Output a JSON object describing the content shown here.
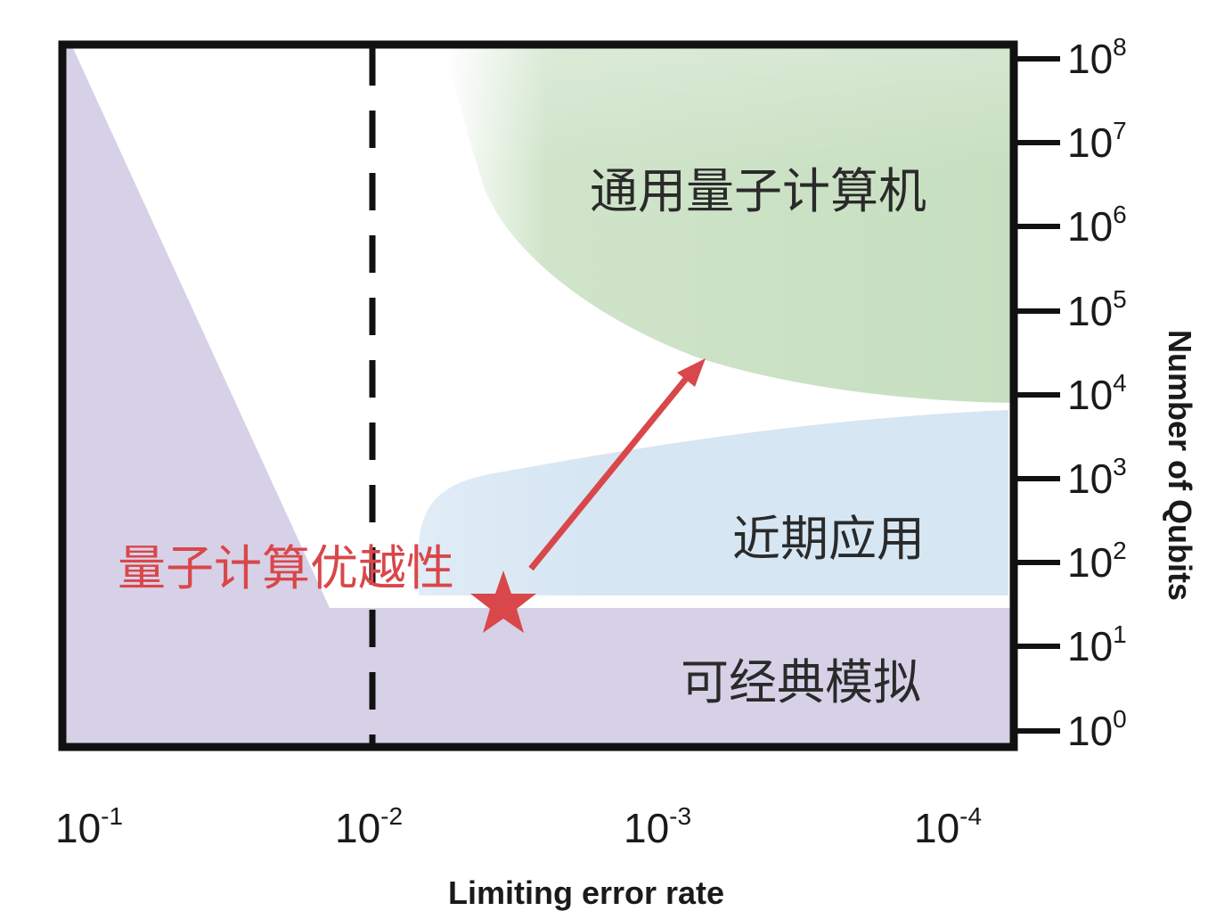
{
  "chart_data": {
    "type": "region-diagram",
    "xlabel": "Limiting error rate",
    "ylabel": "Number of Qubits",
    "x_scale": "log, decreasing left to right",
    "y_scale": "log",
    "x_ticks": [
      {
        "base": "10",
        "exp": "-1"
      },
      {
        "base": "10",
        "exp": "-2"
      },
      {
        "base": "10",
        "exp": "-3"
      },
      {
        "base": "10",
        "exp": "-4"
      }
    ],
    "y_ticks": [
      {
        "base": "10",
        "exp": "8"
      },
      {
        "base": "10",
        "exp": "7"
      },
      {
        "base": "10",
        "exp": "6"
      },
      {
        "base": "10",
        "exp": "5"
      },
      {
        "base": "10",
        "exp": "4"
      },
      {
        "base": "10",
        "exp": "3"
      },
      {
        "base": "10",
        "exp": "2"
      },
      {
        "base": "10",
        "exp": "1"
      },
      {
        "base": "10",
        "exp": "0"
      }
    ],
    "threshold_line_x": "10^-2",
    "regions": {
      "universal": "通用量子计算机",
      "near_term": "近期应用",
      "classical": "可经典模拟",
      "supremacy": "量子计算优越性"
    },
    "colors": {
      "universal": "#c7dfc0",
      "near_term": "#d6e6f3",
      "classical": "#d7d1e7",
      "supremacy": "#d9474a",
      "frame": "#111111"
    }
  }
}
